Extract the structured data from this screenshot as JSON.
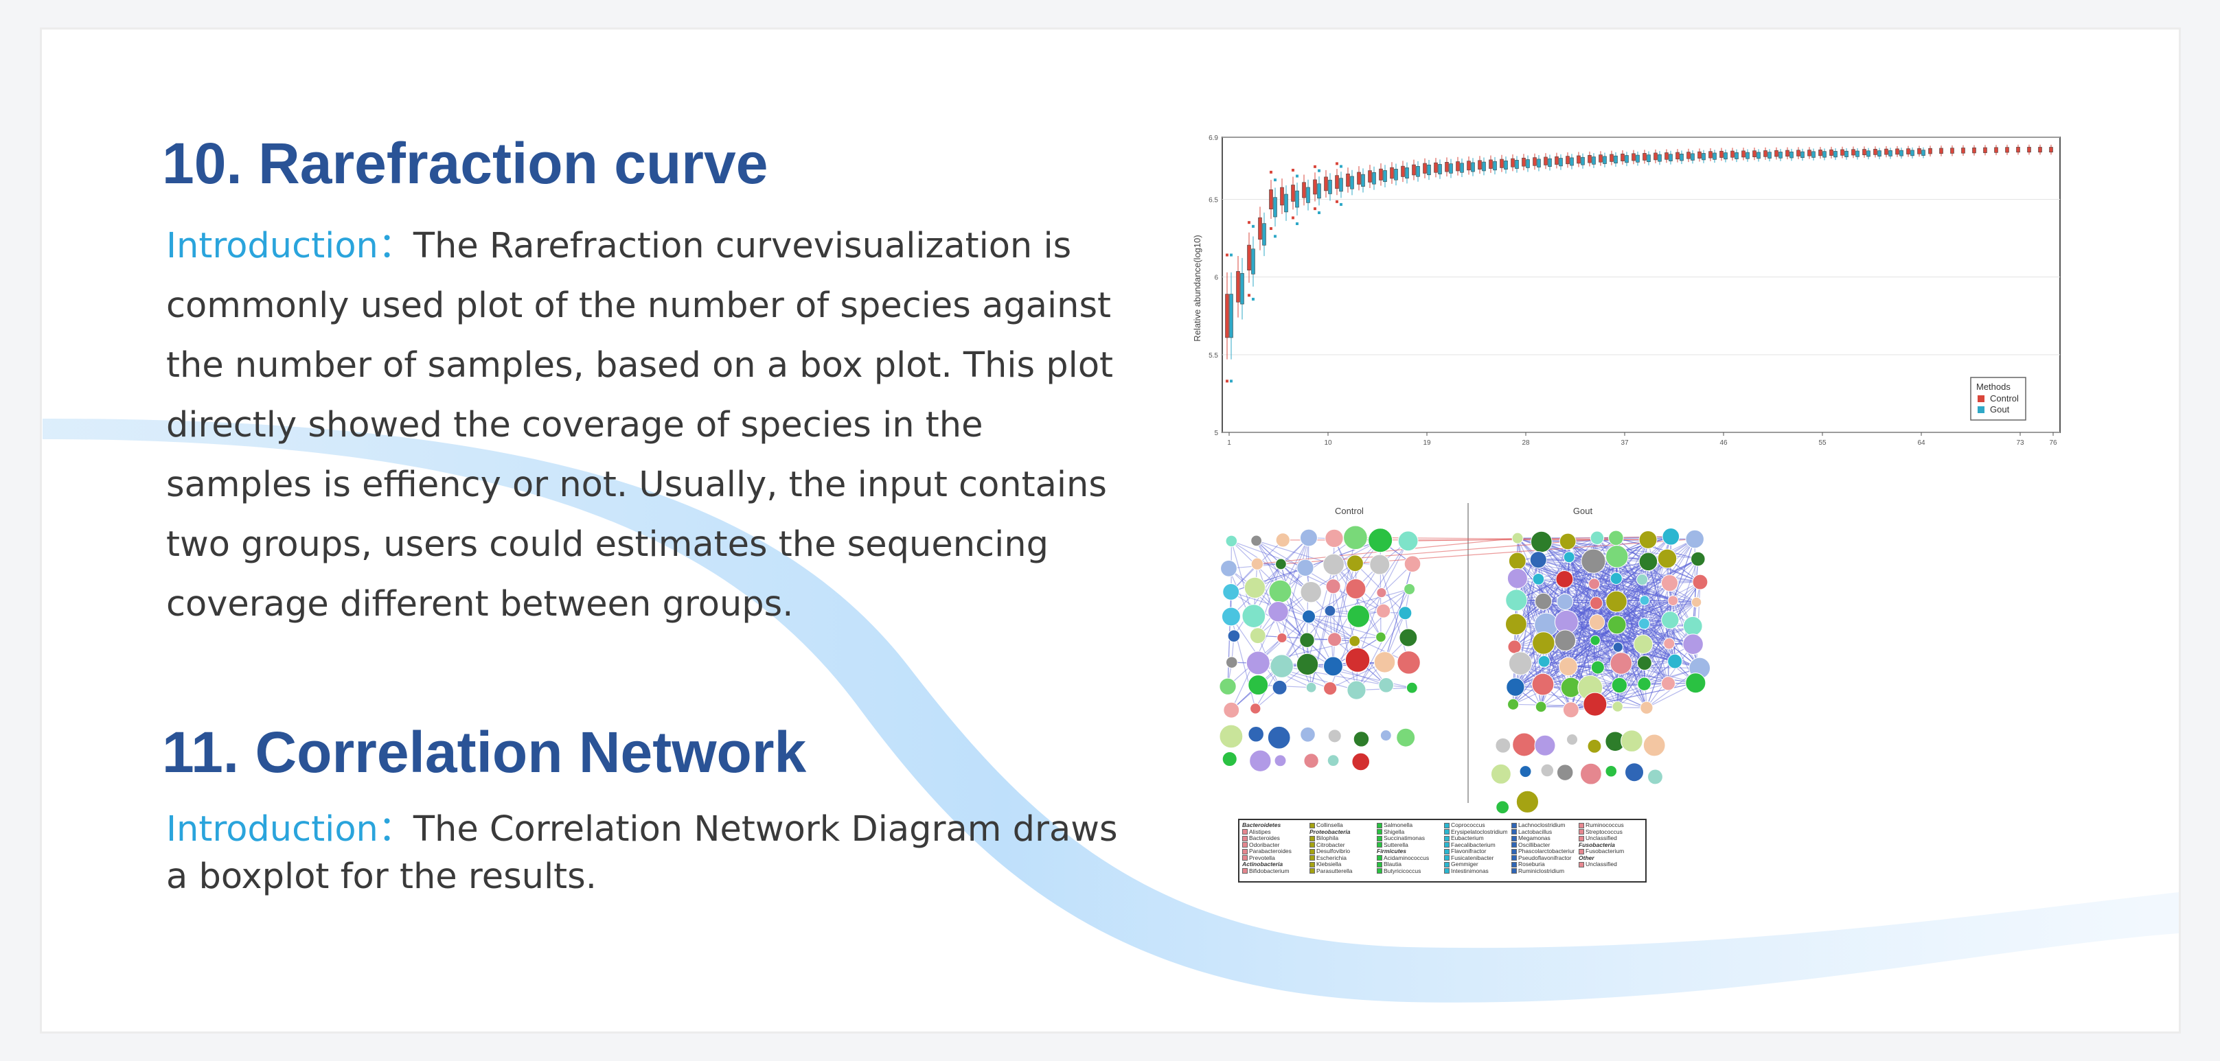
{
  "section1": {
    "title": "10. Rarefraction curve",
    "intro_label": "Introduction：",
    "lines": [
      "The Rarefraction curvevisualization is",
      "commonly used plot of the number of species against",
      "the number of samples, based on a box plot. This plot",
      "directly showed the coverage of species in the",
      "samples is effiency or not. Usually, the input contains",
      "two groups, users could estimates the sequencing",
      "coverage different between groups."
    ]
  },
  "section2": {
    "title": "11. Correlation Network",
    "intro_label": "Introduction：",
    "lines": [
      "The Correlation Network Diagram draws",
      "a boxplot for the results."
    ]
  },
  "colors": {
    "title": "#2a5396",
    "accent": "#2aa4dc",
    "control": "#d9473c",
    "gout": "#2fa8c7",
    "edge": "#5b63d6"
  },
  "chart_data": {
    "type": "box",
    "title": "",
    "xlabel": "",
    "ylabel": "Relative abundance(log10)",
    "x_ticks": [
      "1",
      "10",
      "19",
      "28",
      "37",
      "46",
      "55",
      "64",
      "73",
      "76"
    ],
    "y_ticks": [
      "5",
      "5.5",
      "6",
      "6.5",
      "6.9"
    ],
    "ylim": [
      5,
      6.9
    ],
    "legend": {
      "title": "Methods",
      "position": "bottom-right"
    },
    "series": [
      {
        "name": "Control",
        "color": "#d9473c",
        "x": [
          1,
          5,
          10,
          15,
          19,
          28,
          37,
          46,
          55,
          64,
          73,
          76
        ],
        "median": [
          5.75,
          6.5,
          6.6,
          6.66,
          6.7,
          6.74,
          6.77,
          6.79,
          6.8,
          6.81,
          6.82,
          6.82
        ]
      },
      {
        "name": "Gout",
        "color": "#2fa8c7",
        "x": [
          1,
          5,
          10,
          15,
          19,
          28,
          37,
          46,
          55,
          64
        ],
        "median": [
          5.75,
          6.45,
          6.58,
          6.65,
          6.69,
          6.73,
          6.76,
          6.78,
          6.79,
          6.8
        ]
      }
    ]
  },
  "network": {
    "panels": [
      "Control",
      "Gout"
    ],
    "legend_groups": [
      {
        "heading": "Bacteroidetes",
        "items": [
          "Alistipes",
          "Bacteroides",
          "Odoribacter",
          "Parabacteroides",
          "Prevotella"
        ]
      },
      {
        "heading": "Actinobacteria",
        "items": [
          "Bifidobacterium"
        ]
      },
      {
        "heading": "",
        "items": [
          "Collinsella"
        ]
      },
      {
        "heading": "Proteobacteria",
        "items": [
          "Bilophila",
          "Citrobacter",
          "Desulfovibrio",
          "Escherichia",
          "Klebsiella",
          "Parasutterella"
        ]
      },
      {
        "heading": "",
        "items": [
          "Salmonella",
          "Shigella",
          "Succinatimonas",
          "Sutterella"
        ]
      },
      {
        "heading": "Firmicutes",
        "items": [
          "Acidaminococcus",
          "Blautia",
          "Butyricicoccus"
        ]
      },
      {
        "heading": "",
        "items": [
          "Coprococcus",
          "Erysipelatoclostridium",
          "Eubacterium",
          "Faecalibacterium",
          "Flavonifractor",
          "Fusicatenibacter",
          "Gemmiger",
          "Intestinimonas"
        ]
      },
      {
        "heading": "",
        "items": [
          "Lachnoclostridium",
          "Lactobacillus",
          "Megamonas",
          "Oscillibacter",
          "Phascolarctobacterium",
          "Pseudoflavonifractor",
          "Roseburia",
          "Ruminiclostridium"
        ]
      },
      {
        "heading": "",
        "items": [
          "Ruminococcus",
          "Streptococcus",
          "Unclassified"
        ]
      },
      {
        "heading": "Fusobacteria",
        "items": [
          "Fusobacterium"
        ]
      },
      {
        "heading": "Other",
        "items": [
          "Unclassified"
        ]
      }
    ]
  }
}
